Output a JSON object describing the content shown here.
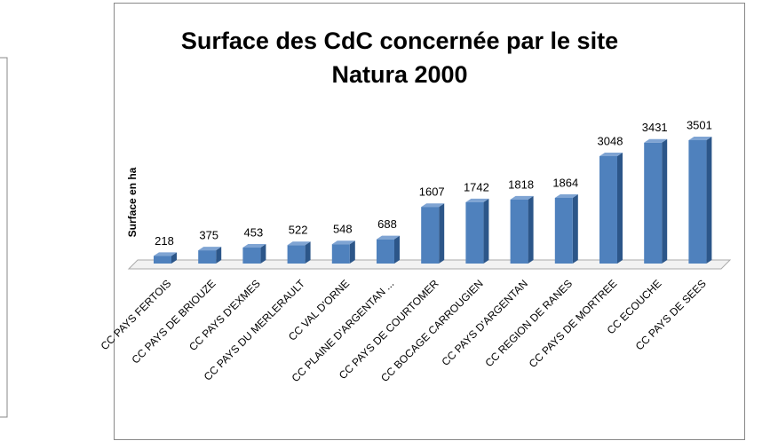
{
  "chart_data": {
    "type": "bar3d",
    "title": [
      "Surface  des CdC concernée par le site",
      "Natura 2000"
    ],
    "y_label": "Surface en ha",
    "categories": [
      "CC PAYS FERTOIS",
      "CC PAYS DE BRIOUZE",
      "CC PAYS D'EXMES",
      "CC PAYS DU MERLERAULT",
      "CC VAL D'ORNE",
      "CC PLAINE D'ARGENTAN ...",
      "CC PAYS DE COURTOMER",
      "CC BOCAGE CARROUGIEN",
      "CC PAYS D'ARGENTAN",
      "CC REGION  DE RANES",
      "CC PAYS  DE MORTREE",
      "CC ECOUCHE",
      "CC PAYS DE SEES"
    ],
    "values": [
      218,
      375,
      453,
      522,
      548,
      688,
      1607,
      1742,
      1818,
      1864,
      3048,
      3431,
      3501
    ],
    "color": "#4f81bd"
  }
}
